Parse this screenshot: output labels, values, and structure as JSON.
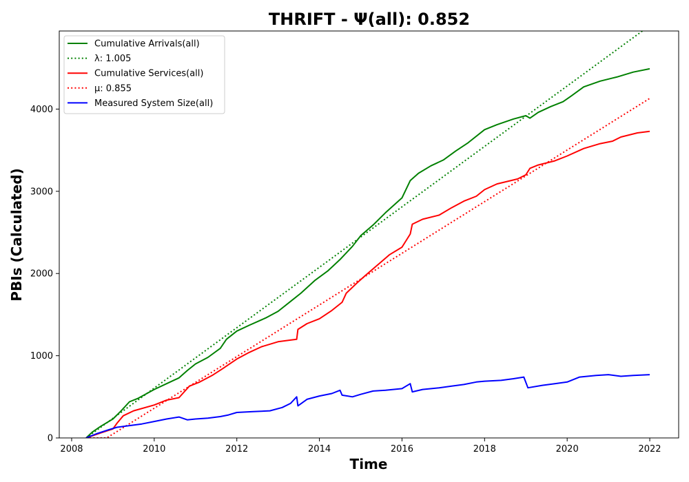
{
  "chart_data": {
    "type": "line",
    "title": "THRIFT -  Ψ(all): 0.852",
    "xlabel": "Time",
    "ylabel": "PBIs (Calculated)",
    "xlim": [
      2007.7,
      2022.7
    ],
    "ylim": [
      0,
      4950
    ],
    "xticks": [
      2008,
      2010,
      2012,
      2014,
      2016,
      2018,
      2020,
      2022
    ],
    "yticks": [
      0,
      1000,
      2000,
      3000,
      4000
    ],
    "grid": false,
    "legend_position": "top-left",
    "series": [
      {
        "name": "Cumulative Arrivals(all)",
        "style": "solid",
        "color": "#008000",
        "x": [
          2008.35,
          2008.5,
          2008.7,
          2009.0,
          2009.2,
          2009.4,
          2009.6,
          2010.0,
          2010.3,
          2010.6,
          2010.8,
          2011.0,
          2011.3,
          2011.6,
          2011.75,
          2012.0,
          2012.3,
          2012.7,
          2013.0,
          2013.3,
          2013.55,
          2013.9,
          2014.2,
          2014.5,
          2014.8,
          2015.0,
          2015.3,
          2015.6,
          2016.0,
          2016.2,
          2016.4,
          2016.7,
          2017.0,
          2017.3,
          2017.6,
          2018.0,
          2018.3,
          2018.7,
          2019.0,
          2019.1,
          2019.3,
          2019.6,
          2019.9,
          2020.1,
          2020.4,
          2020.8,
          2021.2,
          2021.6,
          2022.0
        ],
        "values": [
          0,
          70,
          140,
          230,
          330,
          440,
          480,
          590,
          660,
          730,
          820,
          900,
          980,
          1090,
          1200,
          1300,
          1370,
          1460,
          1540,
          1660,
          1760,
          1920,
          2030,
          2170,
          2330,
          2460,
          2590,
          2740,
          2920,
          3130,
          3220,
          3310,
          3380,
          3490,
          3590,
          3750,
          3810,
          3880,
          3920,
          3890,
          3960,
          4030,
          4090,
          4160,
          4270,
          4340,
          4390,
          4450,
          4490
        ]
      },
      {
        "name": "λ: 1.005",
        "style": "dotted",
        "color": "#008000",
        "x": [
          2008.35,
          2021.82
        ],
        "values": [
          0,
          4950
        ]
      },
      {
        "name": "Cumulative Services(all)",
        "style": "solid",
        "color": "#ff0000",
        "x": [
          2008.35,
          2008.7,
          2009.0,
          2009.1,
          2009.25,
          2009.5,
          2010.0,
          2010.3,
          2010.6,
          2010.85,
          2011.1,
          2011.4,
          2011.65,
          2012.0,
          2012.3,
          2012.6,
          2013.0,
          2013.3,
          2013.45,
          2013.48,
          2013.7,
          2014.0,
          2014.3,
          2014.55,
          2014.65,
          2014.9,
          2015.1,
          2015.4,
          2015.7,
          2016.0,
          2016.2,
          2016.25,
          2016.5,
          2016.9,
          2017.2,
          2017.5,
          2017.8,
          2018.0,
          2018.3,
          2018.8,
          2019.0,
          2019.1,
          2019.3,
          2019.7,
          2020.0,
          2020.4,
          2020.8,
          2021.1,
          2021.3,
          2021.7,
          2022.0
        ],
        "values": [
          0,
          60,
          110,
          180,
          270,
          330,
          400,
          460,
          490,
          630,
          680,
          760,
          840,
          960,
          1040,
          1110,
          1170,
          1190,
          1200,
          1320,
          1390,
          1450,
          1550,
          1650,
          1760,
          1880,
          1970,
          2100,
          2230,
          2320,
          2480,
          2600,
          2660,
          2710,
          2800,
          2880,
          2940,
          3020,
          3090,
          3150,
          3200,
          3280,
          3320,
          3370,
          3430,
          3520,
          3580,
          3610,
          3660,
          3710,
          3730
        ]
      },
      {
        "name": "μ: 0.855",
        "style": "dotted",
        "color": "#ff0000",
        "x": [
          2008.35,
          2008.85,
          2022.0
        ],
        "values": [
          0,
          0,
          4130
        ]
      },
      {
        "name": "Measured System Size(all)",
        "style": "solid",
        "color": "#0000ff",
        "x": [
          2008.35,
          2008.6,
          2008.9,
          2009.1,
          2009.4,
          2009.7,
          2010.0,
          2010.3,
          2010.6,
          2010.8,
          2011.0,
          2011.3,
          2011.6,
          2011.8,
          2012.0,
          2012.4,
          2012.8,
          2013.1,
          2013.3,
          2013.45,
          2013.48,
          2013.7,
          2014.0,
          2014.3,
          2014.5,
          2014.55,
          2014.8,
          2015.0,
          2015.3,
          2015.6,
          2016.0,
          2016.2,
          2016.25,
          2016.5,
          2016.9,
          2017.2,
          2017.5,
          2017.8,
          2018.0,
          2018.4,
          2018.7,
          2018.95,
          2019.05,
          2019.4,
          2019.7,
          2020.0,
          2020.3,
          2020.7,
          2021.0,
          2021.3,
          2021.6,
          2022.0
        ],
        "values": [
          0,
          50,
          100,
          130,
          150,
          170,
          200,
          230,
          255,
          220,
          230,
          240,
          260,
          280,
          310,
          320,
          330,
          370,
          420,
          500,
          390,
          470,
          510,
          540,
          580,
          520,
          500,
          530,
          570,
          580,
          600,
          660,
          560,
          590,
          610,
          630,
          650,
          680,
          690,
          700,
          720,
          740,
          610,
          640,
          660,
          680,
          740,
          760,
          770,
          750,
          760,
          770
        ]
      }
    ]
  }
}
